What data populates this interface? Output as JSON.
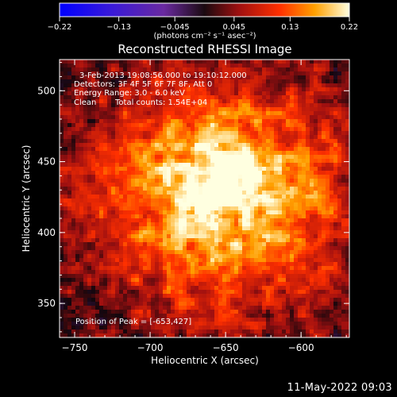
{
  "chart_data": {
    "type": "heatmap",
    "title": "Reconstructed RHESSI Image",
    "xlabel": "Heliocentric X (arcsec)",
    "ylabel": "Heliocentric Y (arcsec)",
    "xlim": [
      -760,
      -568
    ],
    "ylim": [
      326,
      522
    ],
    "x_ticks": [
      -750,
      -700,
      -650,
      -600
    ],
    "y_ticks": [
      350,
      400,
      450,
      500
    ],
    "colorbar": {
      "range": [
        -0.22,
        0.22
      ],
      "ticks": [
        "-0.22",
        "-0.13",
        "-0.045",
        "0.045",
        "0.13",
        "0.22"
      ],
      "unit_label": "(photons cm⁻² s⁻¹ asec⁻²)"
    },
    "peak": {
      "x": -653,
      "y": 427,
      "value": 0.22
    },
    "annotations": {
      "time": "3-Feb-2013 19:08:56.000 to 19:10:12.000",
      "detectors": "Detectors: 3F 4F 5F 6F 7F 8F, Att 0",
      "energy": "Energy Range: 3.0 - 6.0 keV",
      "clean": "Clean",
      "counts": "Total counts: 1.54E+04",
      "peak_text": "Position of Peak = [-653,427]"
    },
    "colors": {
      "low": "#0000ff",
      "mid_low": "#5a1fa0",
      "zero": "#000000",
      "mid_high": "#e03000",
      "high": "#ffffff"
    }
  },
  "footer": {
    "timestamp": "11-May-2022 09:03"
  }
}
